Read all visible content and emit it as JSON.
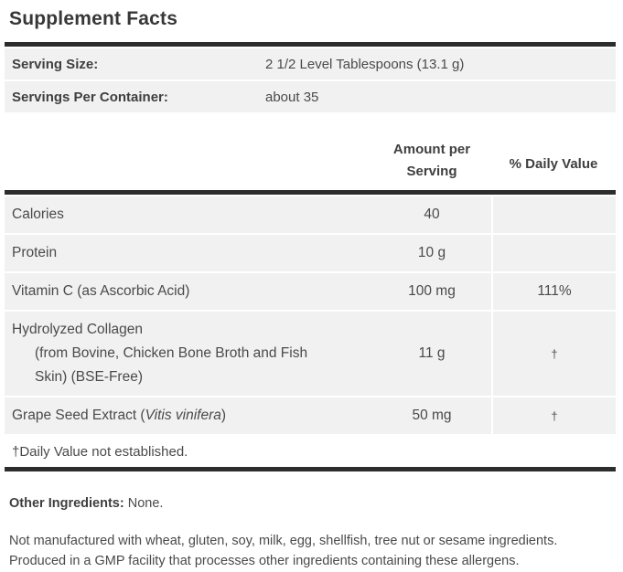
{
  "title": "Supplement Facts",
  "serving_info": {
    "rows": [
      {
        "label": "Serving Size:",
        "value": "2 1/2 Level Tablespoons (13.1 g)"
      },
      {
        "label": "Servings Per Container:",
        "value": "about 35"
      }
    ]
  },
  "table": {
    "columns": {
      "amount_line1": "Amount per",
      "amount_line2": "Serving",
      "daily_value": "% Daily Value"
    },
    "rows": [
      {
        "name": "Calories",
        "amount": "40",
        "dv": ""
      },
      {
        "name": "Protein",
        "amount": "10 g",
        "dv": ""
      },
      {
        "name": "Vitamin C (as Ascorbic Acid)",
        "amount": "100 mg",
        "dv": "111%"
      },
      {
        "name": "Hydrolyzed Collagen",
        "sub_line1": "(from Bovine, Chicken Bone Broth and Fish",
        "sub_line2": "Skin) (BSE-Free)",
        "amount": "11 g",
        "dv": "†"
      },
      {
        "name_prefix": "Grape Seed Extract (",
        "name_italic": "Vitis vinifera",
        "name_suffix": ")",
        "amount": "50 mg",
        "dv": "†"
      }
    ],
    "footnote": "†Daily Value not established."
  },
  "footer": {
    "other_ingredients_label": "Other Ingredients:",
    "other_ingredients_value": " None.",
    "allergen_note": "Not manufactured with wheat, gluten, soy, milk, egg, shellfish, tree nut or sesame ingredients. Produced in a GMP facility that processes other ingredients containing these allergens."
  },
  "colors": {
    "bar": "#2d2d2d",
    "row_background": "#f1f1f1",
    "text": "#4a4a4a"
  }
}
